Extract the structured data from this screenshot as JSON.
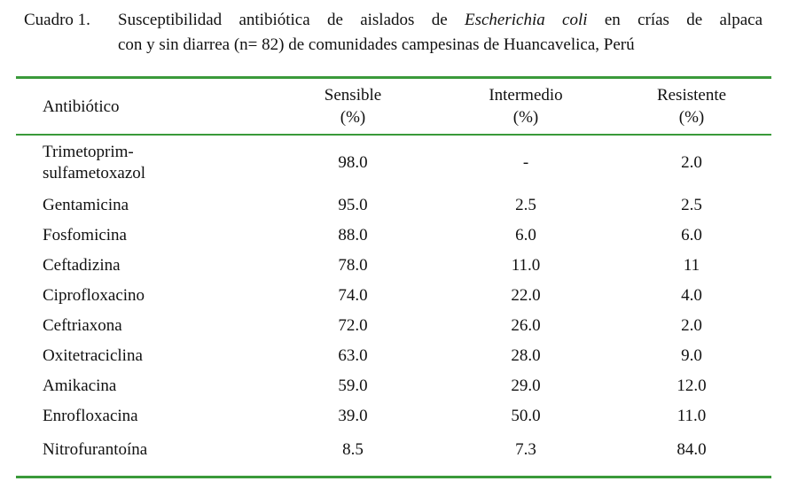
{
  "caption": {
    "label": "Cuadro 1.",
    "part1": "Susceptibilidad antibiótica de aislados de",
    "species": "Escherichia coli",
    "part2": "en crías de alpaca",
    "line2": "con y sin diarrea (n= 82) de comunidades campesinas de Huancavelica, Perú"
  },
  "table": {
    "header": [
      [
        "Antibiótico"
      ],
      [
        "Sensible",
        "(%)"
      ],
      [
        "Intermedio",
        "(%)"
      ],
      [
        "Resistente",
        "(%)"
      ]
    ],
    "rows": [
      [
        [
          "Trimetoprim-",
          "sulfametoxazol"
        ],
        "98.0",
        "-",
        "2.0"
      ],
      [
        [
          "Gentamicina"
        ],
        "95.0",
        "2.5",
        "2.5"
      ],
      [
        [
          "Fosfomicina"
        ],
        "88.0",
        "6.0",
        "6.0"
      ],
      [
        [
          "Ceftadizina"
        ],
        "78.0",
        "11.0",
        "11"
      ],
      [
        [
          "Ciprofloxacino"
        ],
        "74.0",
        "22.0",
        "4.0"
      ],
      [
        [
          "Ceftriaxona"
        ],
        "72.0",
        "26.0",
        "2.0"
      ],
      [
        [
          "Oxitetraciclina"
        ],
        "63.0",
        "28.0",
        "9.0"
      ],
      [
        [
          "Amikacina"
        ],
        "59.0",
        "29.0",
        "12.0"
      ],
      [
        [
          "Enrofloxacina"
        ],
        "39.0",
        "50.0",
        "11.0"
      ],
      [
        [
          "Nitrofurantoína"
        ],
        "8.5",
        "7.3",
        "84.0"
      ]
    ]
  }
}
